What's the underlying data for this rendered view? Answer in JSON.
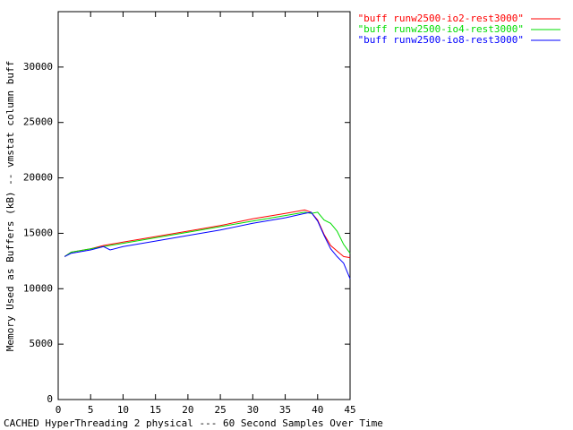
{
  "chart_data": {
    "type": "line",
    "xlabel": "CACHED HyperThreading 2 physical --- 60 Second Samples Over Time",
    "ylabel": "Memory Used as Buffers (kB) -- vmstat column buff",
    "x": [
      1,
      2,
      3,
      5,
      7,
      8,
      10,
      15,
      20,
      25,
      30,
      35,
      38,
      39,
      40,
      41,
      42,
      43,
      44,
      45
    ],
    "series": [
      {
        "name": "\"buff runw2500-io2-rest3000\"",
        "color": "#ff0000",
        "values": [
          12900,
          13300,
          13400,
          13600,
          13900,
          14000,
          14200,
          14700,
          15200,
          15700,
          16300,
          16800,
          17100,
          16900,
          16200,
          14900,
          13900,
          13400,
          12900,
          12800
        ]
      },
      {
        "name": "\"buff runw2500-io4-rest3000\"",
        "color": "#00dd00",
        "values": [
          12900,
          13300,
          13400,
          13600,
          13800,
          13900,
          14100,
          14600,
          15100,
          15600,
          16100,
          16600,
          16900,
          16800,
          16900,
          16200,
          15900,
          15200,
          14000,
          13200
        ]
      },
      {
        "name": "\"buff runw2500-io8-rest3000\"",
        "color": "#0000ff",
        "values": [
          12900,
          13200,
          13300,
          13500,
          13800,
          13500,
          13800,
          14300,
          14800,
          15300,
          15900,
          16400,
          16800,
          16900,
          16100,
          14800,
          13600,
          12900,
          12300,
          10900
        ]
      }
    ],
    "xlim": [
      0,
      45
    ],
    "xticks": [
      0,
      5,
      10,
      15,
      20,
      25,
      30,
      35,
      40,
      45
    ],
    "ylim": [
      0,
      35000
    ],
    "yticks": [
      0,
      5000,
      10000,
      15000,
      20000,
      25000,
      30000
    ]
  }
}
